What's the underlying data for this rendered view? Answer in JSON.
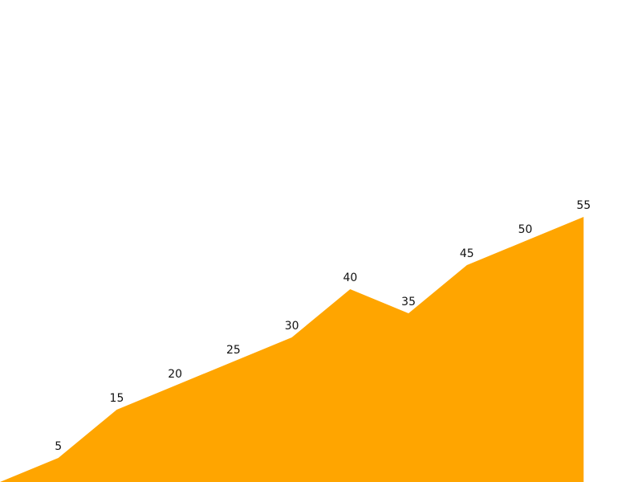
{
  "chart_data": {
    "type": "area",
    "x": [
      0,
      1,
      2,
      3,
      4,
      5,
      6,
      7,
      8,
      9,
      10
    ],
    "values": [
      0,
      5,
      15,
      20,
      25,
      30,
      40,
      35,
      45,
      50,
      55
    ],
    "data_labels": [
      "",
      "5",
      "15",
      "20",
      "25",
      "30",
      "40",
      "35",
      "45",
      "50",
      "55"
    ],
    "xlim": [
      0,
      11
    ],
    "ylim": [
      0,
      100
    ],
    "fill_color": "#FFA500",
    "grid": false,
    "legend": "none",
    "axes_visible": false
  }
}
